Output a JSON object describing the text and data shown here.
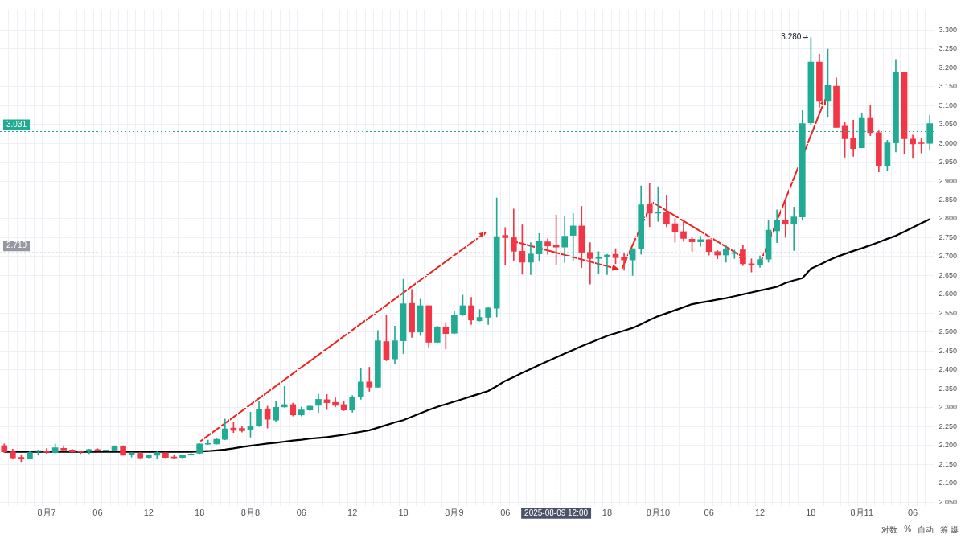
{
  "chart_data": {
    "type": "candlestick",
    "categories": [
      null,
      null,
      null,
      null,
      null,
      "8月7",
      null,
      null,
      null,
      null,
      null,
      "06",
      null,
      null,
      null,
      null,
      null,
      "12",
      null,
      null,
      null,
      null,
      null,
      "18",
      null,
      null,
      null,
      null,
      null,
      "8月8",
      null,
      null,
      null,
      null,
      null,
      "06",
      null,
      null,
      null,
      null,
      null,
      "12",
      null,
      null,
      null,
      null,
      null,
      "18",
      null,
      null,
      null,
      null,
      null,
      "8月9",
      null,
      null,
      null,
      null,
      null,
      "06",
      null,
      null,
      null,
      null,
      null,
      "2025-08-09 12:00",
      null,
      null,
      null,
      null,
      null,
      "18",
      null,
      null,
      null,
      null,
      null,
      "8月10",
      null,
      null,
      null,
      null,
      null,
      "06",
      null,
      null,
      null,
      null,
      null,
      "12",
      null,
      null,
      null,
      null,
      null,
      "18",
      null,
      null,
      null,
      null,
      null,
      "8月11",
      null,
      null,
      null,
      null,
      null,
      "06",
      null,
      null
    ],
    "ohlc": [
      [
        2.199,
        2.204,
        2.181,
        2.183
      ],
      [
        2.183,
        2.19,
        2.166,
        2.167
      ],
      [
        2.168,
        2.175,
        2.157,
        2.166
      ],
      [
        2.166,
        2.185,
        2.164,
        2.181
      ],
      [
        2.184,
        2.188,
        2.174,
        2.186
      ],
      [
        2.186,
        2.192,
        2.178,
        2.182
      ],
      [
        2.181,
        2.204,
        2.179,
        2.194
      ],
      [
        2.192,
        2.199,
        2.185,
        2.188
      ],
      [
        2.188,
        2.19,
        2.181,
        2.183
      ],
      [
        2.184,
        2.185,
        2.178,
        2.183
      ],
      [
        2.184,
        2.19,
        2.178,
        2.189
      ],
      [
        2.189,
        2.191,
        2.185,
        2.187
      ],
      [
        2.186,
        2.188,
        2.185,
        2.187
      ],
      [
        2.186,
        2.199,
        2.185,
        2.197
      ],
      [
        2.197,
        2.199,
        2.174,
        2.174
      ],
      [
        2.176,
        2.181,
        2.169,
        2.18
      ],
      [
        2.179,
        2.181,
        2.167,
        2.167
      ],
      [
        2.168,
        2.175,
        2.167,
        2.174
      ],
      [
        2.174,
        2.183,
        2.166,
        2.181
      ],
      [
        2.18,
        2.181,
        2.167,
        2.168
      ],
      [
        2.169,
        2.175,
        2.166,
        2.167
      ],
      [
        2.168,
        2.175,
        2.167,
        2.174
      ],
      [
        2.175,
        2.179,
        2.174,
        2.177
      ],
      [
        2.179,
        2.205,
        2.178,
        2.204
      ],
      [
        2.203,
        2.214,
        2.202,
        2.205
      ],
      [
        2.204,
        2.22,
        2.203,
        2.216
      ],
      [
        2.216,
        2.27,
        2.215,
        2.244
      ],
      [
        2.246,
        2.262,
        2.234,
        2.24
      ],
      [
        2.245,
        2.25,
        2.235,
        2.239
      ],
      [
        2.242,
        2.288,
        2.222,
        2.251
      ],
      [
        2.251,
        2.318,
        2.25,
        2.295
      ],
      [
        2.297,
        2.304,
        2.246,
        2.269
      ],
      [
        2.267,
        2.318,
        2.262,
        2.301
      ],
      [
        2.302,
        2.356,
        2.301,
        2.308
      ],
      [
        2.308,
        2.312,
        2.278,
        2.281
      ],
      [
        2.281,
        2.302,
        2.278,
        2.294
      ],
      [
        2.294,
        2.306,
        2.292,
        2.304
      ],
      [
        2.306,
        2.336,
        2.287,
        2.322
      ],
      [
        2.321,
        2.335,
        2.295,
        2.313
      ],
      [
        2.314,
        2.326,
        2.302,
        2.306
      ],
      [
        2.308,
        2.318,
        2.292,
        2.294
      ],
      [
        2.294,
        2.332,
        2.288,
        2.327
      ],
      [
        2.328,
        2.403,
        2.322,
        2.368
      ],
      [
        2.368,
        2.407,
        2.343,
        2.354
      ],
      [
        2.354,
        2.504,
        2.354,
        2.477
      ],
      [
        2.475,
        2.544,
        2.424,
        2.427
      ],
      [
        2.429,
        2.516,
        2.417,
        2.477
      ],
      [
        2.477,
        2.64,
        2.443,
        2.575
      ],
      [
        2.576,
        2.613,
        2.486,
        2.5
      ],
      [
        2.5,
        2.587,
        2.491,
        2.57
      ],
      [
        2.57,
        2.57,
        2.459,
        2.473
      ],
      [
        2.473,
        2.516,
        2.472,
        2.514
      ],
      [
        2.513,
        2.525,
        2.455,
        2.496
      ],
      [
        2.497,
        2.556,
        2.495,
        2.544
      ],
      [
        2.546,
        2.598,
        2.544,
        2.57
      ],
      [
        2.57,
        2.592,
        2.52,
        2.532
      ],
      [
        2.53,
        2.56,
        2.529,
        2.539
      ],
      [
        2.539,
        2.566,
        2.52,
        2.564
      ],
      [
        2.563,
        2.855,
        2.54,
        2.753
      ],
      [
        2.756,
        2.777,
        2.678,
        2.75
      ],
      [
        2.75,
        2.826,
        2.69,
        2.714
      ],
      [
        2.714,
        2.784,
        2.653,
        2.685
      ],
      [
        2.685,
        2.737,
        2.652,
        2.707
      ],
      [
        2.707,
        2.761,
        2.69,
        2.741
      ],
      [
        2.739,
        2.747,
        2.706,
        2.728
      ],
      [
        2.73,
        2.81,
        2.678,
        2.725
      ],
      [
        2.725,
        2.807,
        2.684,
        2.754
      ],
      [
        2.756,
        2.814,
        2.688,
        2.781
      ],
      [
        2.781,
        2.833,
        2.671,
        2.711
      ],
      [
        2.711,
        2.737,
        2.627,
        2.695
      ],
      [
        2.695,
        2.713,
        2.654,
        2.699
      ],
      [
        2.699,
        2.706,
        2.652,
        2.704
      ],
      [
        2.706,
        2.721,
        2.681,
        2.697
      ],
      [
        2.697,
        2.709,
        2.664,
        2.691
      ],
      [
        2.691,
        2.721,
        2.65,
        2.721
      ],
      [
        2.721,
        2.887,
        2.706,
        2.837
      ],
      [
        2.838,
        2.894,
        2.779,
        2.815
      ],
      [
        2.815,
        2.885,
        2.793,
        2.818
      ],
      [
        2.818,
        2.861,
        2.779,
        2.787
      ],
      [
        2.787,
        2.8,
        2.738,
        2.766
      ],
      [
        2.766,
        2.791,
        2.74,
        2.748
      ],
      [
        2.746,
        2.751,
        2.714,
        2.739
      ],
      [
        2.739,
        2.754,
        2.727,
        2.745
      ],
      [
        2.745,
        2.745,
        2.704,
        2.713
      ],
      [
        2.713,
        2.716,
        2.694,
        2.704
      ],
      [
        2.704,
        2.73,
        2.685,
        2.72
      ],
      [
        2.708,
        2.717,
        2.695,
        2.709
      ],
      [
        2.718,
        2.73,
        2.676,
        2.681
      ],
      [
        2.681,
        2.694,
        2.659,
        2.677
      ],
      [
        2.677,
        2.702,
        2.671,
        2.692
      ],
      [
        2.693,
        2.795,
        2.685,
        2.77
      ],
      [
        2.768,
        2.824,
        2.737,
        2.795
      ],
      [
        2.796,
        2.852,
        2.751,
        2.786
      ],
      [
        2.786,
        2.831,
        2.716,
        2.805
      ],
      [
        2.805,
        3.087,
        2.796,
        3.052
      ],
      [
        3.054,
        3.28,
        3.048,
        3.215
      ],
      [
        3.215,
        3.236,
        3.095,
        3.111
      ],
      [
        3.111,
        3.249,
        3.071,
        3.153
      ],
      [
        3.151,
        3.173,
        3.042,
        3.042
      ],
      [
        3.045,
        3.055,
        2.963,
        3.012
      ],
      [
        3.012,
        3.061,
        2.965,
        2.986
      ],
      [
        2.988,
        3.078,
        2.988,
        3.066
      ],
      [
        3.066,
        3.101,
        3.02,
        3.028
      ],
      [
        3.028,
        3.033,
        2.924,
        2.941
      ],
      [
        2.941,
        3.008,
        2.928,
        3.001
      ],
      [
        3.001,
        3.222,
        2.977,
        3.187
      ],
      [
        3.187,
        3.187,
        2.972,
        3.012
      ],
      [
        3.011,
        3.022,
        2.96,
        2.998
      ],
      [
        3.0,
        3.013,
        2.974,
        2.999
      ],
      [
        3.0,
        3.074,
        2.983,
        3.052
      ]
    ],
    "colors": [
      "#f23645",
      "#f23645",
      "#f23645",
      "#22ab94",
      "#22ab94",
      "#f23645",
      "#22ab94",
      "#f23645",
      "#f23645",
      "#f23645",
      "#22ab94",
      "#f23645",
      "#22ab94",
      "#22ab94",
      "#f23645",
      "#22ab94",
      "#f23645",
      "#22ab94",
      "#22ab94",
      "#f23645",
      "#f23645",
      "#22ab94",
      "#22ab94",
      "#22ab94",
      "#22ab94",
      "#22ab94",
      "#22ab94",
      "#f23645",
      "#f23645",
      "#22ab94",
      "#22ab94",
      "#f23645",
      "#22ab94",
      "#22ab94",
      "#f23645",
      "#22ab94",
      "#22ab94",
      "#22ab94",
      "#f23645",
      "#f23645",
      "#f23645",
      "#22ab94",
      "#22ab94",
      "#f23645",
      "#22ab94",
      "#f23645",
      "#22ab94",
      "#22ab94",
      "#f23645",
      "#22ab94",
      "#f23645",
      "#22ab94",
      "#f23645",
      "#22ab94",
      "#22ab94",
      "#f23645",
      "#22ab94",
      "#22ab94",
      "#22ab94",
      "#f23645",
      "#f23645",
      "#f23645",
      "#22ab94",
      "#22ab94",
      "#f23645",
      "#f23645",
      "#22ab94",
      "#22ab94",
      "#f23645",
      "#f23645",
      "#22ab94",
      "#22ab94",
      "#f23645",
      "#f23645",
      "#22ab94",
      "#22ab94",
      "#f23645",
      "#22ab94",
      "#f23645",
      "#f23645",
      "#f23645",
      "#f23645",
      "#22ab94",
      "#f23645",
      "#f23645",
      "#22ab94",
      "#22ab94",
      "#f23645",
      "#f23645",
      "#22ab94",
      "#22ab94",
      "#22ab94",
      "#f23645",
      "#22ab94",
      "#22ab94",
      "#22ab94",
      "#f23645",
      "#22ab94",
      "#f23645",
      "#f23645",
      "#f23645",
      "#22ab94",
      "#f23645",
      "#f23645",
      "#22ab94",
      "#22ab94",
      "#f23645",
      "#f23645",
      "#f23645",
      "#22ab94"
    ],
    "series": [
      {
        "type": "line",
        "color": "#000000",
        "values": [
          2.183,
          2.183,
          2.183,
          2.183,
          2.183,
          2.183,
          2.183,
          2.183,
          2.183,
          2.183,
          2.183,
          2.183,
          2.183,
          2.183,
          2.183,
          2.183,
          2.183,
          2.183,
          2.183,
          2.183,
          2.183,
          2.183,
          2.183,
          2.184,
          2.185,
          2.187,
          2.189,
          2.192,
          2.196,
          2.199,
          2.202,
          2.205,
          2.207,
          2.21,
          2.213,
          2.215,
          2.218,
          2.22,
          2.222,
          2.225,
          2.228,
          2.232,
          2.236,
          2.24,
          2.247,
          2.254,
          2.261,
          2.267,
          2.276,
          2.285,
          2.294,
          2.302,
          2.309,
          2.316,
          2.323,
          2.33,
          2.337,
          2.344,
          2.357,
          2.371,
          2.381,
          2.392,
          2.402,
          2.413,
          2.423,
          2.433,
          2.443,
          2.453,
          2.463,
          2.472,
          2.481,
          2.49,
          2.497,
          2.504,
          2.511,
          2.521,
          2.532,
          2.542,
          2.55,
          2.558,
          2.566,
          2.574,
          2.578,
          2.582,
          2.586,
          2.59,
          2.595,
          2.6,
          2.605,
          2.61,
          2.615,
          2.62,
          2.63,
          2.637,
          2.643,
          2.668,
          2.678,
          2.689,
          2.699,
          2.707,
          2.715,
          2.722,
          2.73,
          2.738,
          2.747,
          2.755,
          2.766,
          2.777,
          2.788,
          2.799
        ]
      }
    ],
    "ylim": [
      2.04,
      3.355
    ],
    "yticks": [
      {
        "value": 2.05,
        "label": "2.050"
      },
      {
        "value": 2.1,
        "label": "2.100"
      },
      {
        "value": 2.15,
        "label": "2.150"
      },
      {
        "value": 2.2,
        "label": "2.200"
      },
      {
        "value": 2.25,
        "label": "2.250"
      },
      {
        "value": 2.3,
        "label": "2.300"
      },
      {
        "value": 2.35,
        "label": "2.350"
      },
      {
        "value": 2.4,
        "label": "2.400"
      },
      {
        "value": 2.45,
        "label": "2.450"
      },
      {
        "value": 2.5,
        "label": "2.500"
      },
      {
        "value": 2.55,
        "label": "2.550"
      },
      {
        "value": 2.6,
        "label": "2.600"
      },
      {
        "value": 2.65,
        "label": "2.650"
      },
      {
        "value": 2.7,
        "label": "2.700"
      },
      {
        "value": 2.75,
        "label": "2.750"
      },
      {
        "value": 2.8,
        "label": "2.800"
      },
      {
        "value": 2.85,
        "label": "2.850"
      },
      {
        "value": 2.9,
        "label": "2.900"
      },
      {
        "value": 2.95,
        "label": "2.950"
      },
      {
        "value": 3.0,
        "label": "3.000"
      },
      {
        "value": 3.05,
        "label": "3.050"
      },
      {
        "value": 3.1,
        "label": "3.100"
      },
      {
        "value": 3.15,
        "label": "3.150"
      },
      {
        "value": 3.2,
        "label": "3.200"
      },
      {
        "value": 3.25,
        "label": "3.250"
      },
      {
        "value": 3.3,
        "label": "3.300"
      }
    ],
    "grid": true,
    "legend": false,
    "marker": "none",
    "ref_lines": [
      {
        "axis": "y",
        "value": 2.71,
        "label": "2.710",
        "color": "#9598a1",
        "line_style": "dotted"
      },
      {
        "axis": "y",
        "value": 3.031,
        "label": "3.031",
        "color": "#22ab94",
        "line_style": "dotted"
      },
      {
        "axis": "x",
        "value": "2025-08-09 12:00",
        "color": "#9598a1",
        "line_style": "dotted"
      }
    ],
    "annotations": [
      "3.280",
      "对数",
      "%",
      "自动",
      "筹 爆"
    ]
  }
}
